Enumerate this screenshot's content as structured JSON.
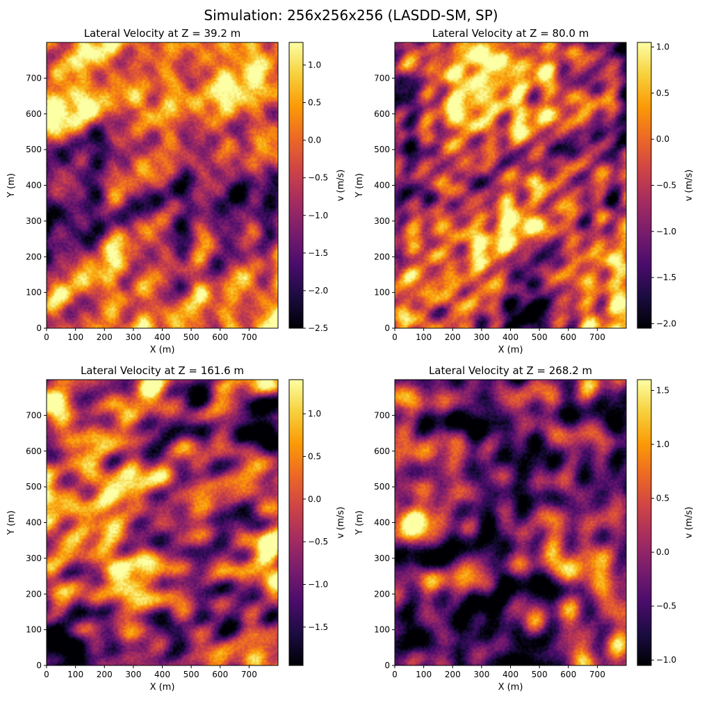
{
  "suptitle": "Simulation: 256x256x256 (LASDD-SM, SP)",
  "colormap": "inferno",
  "colormap_stops": [
    "#000004",
    "#1b0c41",
    "#4a0c6b",
    "#781c6d",
    "#a52c60",
    "#cf4446",
    "#ed6925",
    "#fb9b06",
    "#f7d13d",
    "#fcffa4"
  ],
  "chart_data": [
    {
      "type": "heatmap",
      "title": "Lateral Velocity at Z = 39.2 m",
      "xlabel": "X (m)",
      "ylabel": "Y (m)",
      "xlim": [
        0,
        800
      ],
      "ylim": [
        0,
        800
      ],
      "xticks": [
        0,
        100,
        200,
        300,
        400,
        500,
        600,
        700
      ],
      "yticks": [
        0,
        100,
        200,
        300,
        400,
        500,
        600,
        700
      ],
      "colorbar_label": "v (m/s)",
      "clim": [
        -2.5,
        1.3
      ],
      "colorbar_ticks": [
        1.0,
        0.5,
        0.0,
        -0.5,
        -1.0,
        -1.5,
        -2.0,
        -2.5
      ],
      "colorbar_tick_labels": [
        "1.0",
        "0.5",
        "0.0",
        "−0.5",
        "−1.0",
        "−1.5",
        "−2.0",
        "−2.5"
      ],
      "field_features": [
        {
          "x": 60,
          "y": 300,
          "v": -2.2
        },
        {
          "x": 90,
          "y": 230,
          "v": -2.3
        },
        {
          "x": 400,
          "y": 300,
          "v": -1.4
        },
        {
          "x": 620,
          "y": 320,
          "v": -1.8
        },
        {
          "x": 560,
          "y": 390,
          "v": -1.5
        },
        {
          "x": 200,
          "y": 50,
          "v": 0.6
        },
        {
          "x": 150,
          "y": 150,
          "v": 0.8
        },
        {
          "x": 700,
          "y": 650,
          "v": 0.7
        },
        {
          "x": 500,
          "y": 600,
          "v": 0.3
        },
        {
          "x": 300,
          "y": 200,
          "v": 0.4
        },
        {
          "x": 750,
          "y": 100,
          "v": 0.7
        },
        {
          "x": 50,
          "y": 700,
          "v": 0.6
        }
      ]
    },
    {
      "type": "heatmap",
      "title": "Lateral Velocity at Z = 80.0 m",
      "xlabel": "X (m)",
      "ylabel": "Y (m)",
      "xlim": [
        0,
        800
      ],
      "ylim": [
        0,
        800
      ],
      "xticks": [
        0,
        100,
        200,
        300,
        400,
        500,
        600,
        700
      ],
      "yticks": [
        0,
        100,
        200,
        300,
        400,
        500,
        600,
        700
      ],
      "colorbar_label": "v (m/s)",
      "clim": [
        -2.05,
        1.05
      ],
      "colorbar_ticks": [
        1.0,
        0.5,
        0.0,
        -0.5,
        -1.0,
        -1.5,
        -2.0
      ],
      "colorbar_tick_labels": [
        "1.0",
        "0.5",
        "0.0",
        "−0.5",
        "−1.0",
        "−1.5",
        "−2.0"
      ],
      "field_features": [
        {
          "x": 50,
          "y": 500,
          "v": -1.6
        },
        {
          "x": 100,
          "y": 300,
          "v": -1.4
        },
        {
          "x": 580,
          "y": 400,
          "v": -1.5
        },
        {
          "x": 730,
          "y": 680,
          "v": -1.7
        },
        {
          "x": 400,
          "y": 150,
          "v": -1.3
        },
        {
          "x": 150,
          "y": 150,
          "v": 0.6
        },
        {
          "x": 280,
          "y": 330,
          "v": 0.5
        },
        {
          "x": 680,
          "y": 220,
          "v": 0.7
        },
        {
          "x": 300,
          "y": 700,
          "v": 0.4
        },
        {
          "x": 450,
          "y": 500,
          "v": 0.2
        },
        {
          "x": 750,
          "y": 100,
          "v": 0.5
        },
        {
          "x": 650,
          "y": 550,
          "v": 0.0
        }
      ]
    },
    {
      "type": "heatmap",
      "title": "Lateral Velocity at Z = 161.6 m",
      "xlabel": "X (m)",
      "ylabel": "Y (m)",
      "xlim": [
        0,
        800
      ],
      "ylim": [
        0,
        800
      ],
      "xticks": [
        0,
        100,
        200,
        300,
        400,
        500,
        600,
        700
      ],
      "yticks": [
        0,
        100,
        200,
        300,
        400,
        500,
        600,
        700
      ],
      "colorbar_label": "v (m/s)",
      "clim": [
        -1.95,
        1.4
      ],
      "colorbar_ticks": [
        1.0,
        0.5,
        0.0,
        -0.5,
        -1.0,
        -1.5
      ],
      "colorbar_tick_labels": [
        "1.0",
        "0.5",
        "0.0",
        "−0.5",
        "−1.0",
        "−1.5"
      ],
      "field_features": [
        {
          "x": 200,
          "y": 350,
          "v": 1.0
        },
        {
          "x": 300,
          "y": 280,
          "v": 0.9
        },
        {
          "x": 100,
          "y": 450,
          "v": 0.6
        },
        {
          "x": 680,
          "y": 400,
          "v": 0.6
        },
        {
          "x": 100,
          "y": 200,
          "v": -1.3
        },
        {
          "x": 30,
          "y": 100,
          "v": -1.6
        },
        {
          "x": 550,
          "y": 400,
          "v": -1.3
        },
        {
          "x": 600,
          "y": 650,
          "v": -1.0
        },
        {
          "x": 350,
          "y": 550,
          "v": -0.6
        },
        {
          "x": 500,
          "y": 100,
          "v": -0.9
        },
        {
          "x": 750,
          "y": 250,
          "v": 0.1
        },
        {
          "x": 450,
          "y": 750,
          "v": -0.3
        }
      ]
    },
    {
      "type": "heatmap",
      "title": "Lateral Velocity at Z = 268.2 m",
      "xlabel": "X (m)",
      "ylabel": "Y (m)",
      "xlim": [
        0,
        800
      ],
      "ylim": [
        0,
        800
      ],
      "xticks": [
        0,
        100,
        200,
        300,
        400,
        500,
        600,
        700
      ],
      "yticks": [
        0,
        100,
        200,
        300,
        400,
        500,
        600,
        700
      ],
      "colorbar_label": "v (m/s)",
      "clim": [
        -1.05,
        1.6
      ],
      "colorbar_ticks": [
        1.5,
        1.0,
        0.5,
        0.0,
        -0.5,
        -1.0
      ],
      "colorbar_tick_labels": [
        "1.5",
        "1.0",
        "0.5",
        "0.0",
        "−0.5",
        "−1.0"
      ],
      "field_features": [
        {
          "x": 420,
          "y": 490,
          "v": -0.9
        },
        {
          "x": 100,
          "y": 110,
          "v": -0.9
        },
        {
          "x": 350,
          "y": 100,
          "v": -0.8
        },
        {
          "x": 400,
          "y": 260,
          "v": -0.6
        },
        {
          "x": 240,
          "y": 220,
          "v": -0.5
        },
        {
          "x": 700,
          "y": 450,
          "v": -0.4
        },
        {
          "x": 550,
          "y": 500,
          "v": -0.3
        },
        {
          "x": 300,
          "y": 650,
          "v": 0.1
        },
        {
          "x": 550,
          "y": 350,
          "v": 1.1
        },
        {
          "x": 460,
          "y": 290,
          "v": 0.7
        },
        {
          "x": 200,
          "y": 400,
          "v": 0.5
        },
        {
          "x": 700,
          "y": 150,
          "v": 0.4
        }
      ]
    }
  ]
}
